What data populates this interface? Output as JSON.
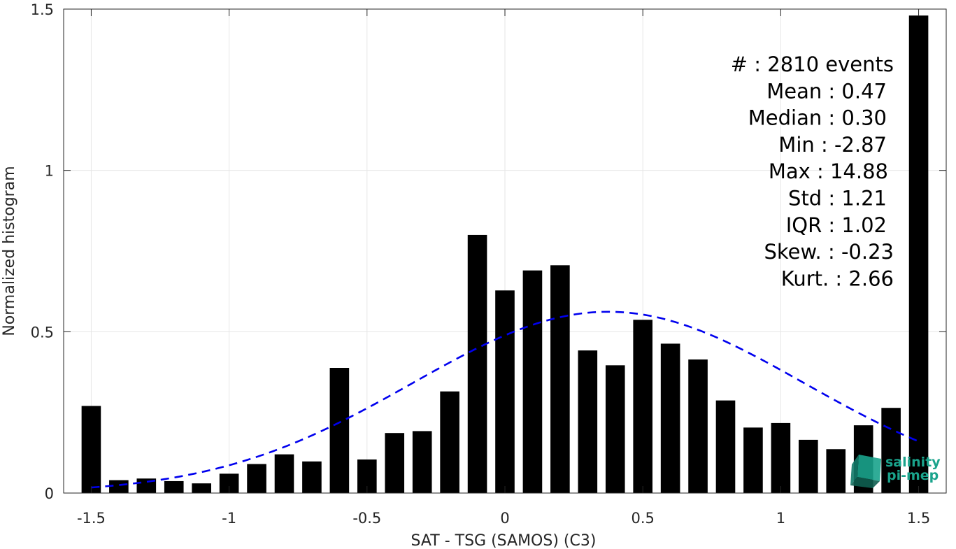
{
  "chart_data": {
    "type": "bar",
    "xlabel": "SAT - TSG (SAMOS) (C3)",
    "ylabel": "Normalized histogram",
    "xlim": [
      -1.6,
      1.6
    ],
    "ylim": [
      0,
      1.5
    ],
    "xticks": [
      -1.5,
      -1,
      -0.5,
      0,
      0.5,
      1,
      1.5
    ],
    "xtick_labels": [
      "-1.5",
      "-1",
      "-0.5",
      "0",
      "0.5",
      "1",
      "1.5"
    ],
    "yticks": [
      0,
      0.5,
      1,
      1.5
    ],
    "ytick_labels": [
      "0",
      "0.5",
      "1",
      "1.5"
    ],
    "grid": true,
    "bar_width": 0.07,
    "bar_color": "#000000",
    "x": [
      -1.5,
      -1.4,
      -1.3,
      -1.2,
      -1.1,
      -1.0,
      -0.9,
      -0.8,
      -0.7,
      -0.6,
      -0.5,
      -0.4,
      -0.3,
      -0.2,
      -0.1,
      0.0,
      0.1,
      0.2,
      0.3,
      0.4,
      0.5,
      0.6,
      0.7,
      0.8,
      0.9,
      1.0,
      1.1,
      1.2,
      1.3,
      1.4,
      1.5
    ],
    "values": [
      0.27,
      0.04,
      0.045,
      0.037,
      0.03,
      0.06,
      0.09,
      0.12,
      0.098,
      0.388,
      0.104,
      0.186,
      0.192,
      0.315,
      0.8,
      0.628,
      0.69,
      0.706,
      0.442,
      0.396,
      0.537,
      0.463,
      0.414,
      0.287,
      0.203,
      0.217,
      0.165,
      0.136,
      0.21,
      0.264,
      1.48
    ],
    "fit_curve": {
      "style": "dashed",
      "color": "#0000ee",
      "distribution": "normal",
      "mean": 0.375,
      "sigma": 0.71,
      "x_range": [
        -1.5,
        1.5
      ]
    }
  },
  "stats": [
    "#  : 2810 events",
    "Mean : 0.47",
    "Median : 0.30",
    "Min : -2.87",
    "Max : 14.88",
    "Std : 1.21",
    "IQR : 1.02",
    "Skew. : -0.23",
    "Kurt. : 2.66"
  ],
  "logo": {
    "line1": "salinity",
    "line2": "pi-mep",
    "color": "#1aa38c"
  }
}
